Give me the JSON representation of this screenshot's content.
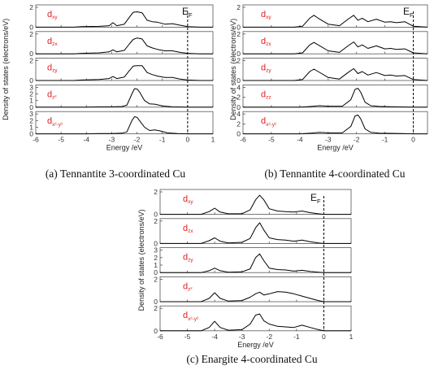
{
  "chart_data": [
    {
      "type": "line",
      "caption": "(a) Tennantite 3-coordinated Cu",
      "xlabel": "Energy /eV",
      "ylabel": "Density of states (electrons/eV)",
      "fermi_label": "E",
      "fermi_sub": "F",
      "xlim": [
        -6,
        1
      ],
      "xticks": [
        "-6",
        "-5",
        "-4",
        "-3",
        "-2",
        "-1",
        "0",
        "1"
      ],
      "panels": [
        {
          "orbital": "d",
          "orbital_sub": "xy",
          "ylim": [
            0,
            2
          ],
          "yticks": [
            "0",
            "2"
          ],
          "x": [
            -6,
            -4.5,
            -4.2,
            -3.5,
            -3.1,
            -2.95,
            -2.8,
            -2.5,
            -2.3,
            -2.15,
            -2.0,
            -1.8,
            -1.6,
            -1.4,
            -1.2,
            -0.9,
            -0.6,
            -0.3,
            0,
            0.5,
            1
          ],
          "y": [
            0,
            0,
            0.05,
            0.08,
            0.15,
            0.45,
            0.15,
            0.3,
            1.0,
            1.5,
            1.55,
            1.45,
            0.7,
            0.55,
            0.5,
            0.3,
            0.35,
            0.2,
            0.05,
            0,
            0
          ]
        },
        {
          "orbital": "d",
          "orbital_sub": "zx",
          "ylim": [
            0,
            2
          ],
          "yticks": [
            "0",
            "2"
          ],
          "x": [
            -6,
            -4.5,
            -4.2,
            -3.5,
            -3.1,
            -2.95,
            -2.8,
            -2.5,
            -2.3,
            -2.15,
            -2.0,
            -1.8,
            -1.6,
            -1.4,
            -1.2,
            -0.9,
            -0.6,
            -0.3,
            0,
            0.5,
            1
          ],
          "y": [
            0,
            0,
            0.05,
            0.1,
            0.2,
            0.4,
            0.2,
            0.35,
            1.0,
            1.45,
            1.6,
            1.5,
            0.8,
            0.6,
            0.45,
            0.3,
            0.3,
            0.15,
            0.05,
            0,
            0
          ]
        },
        {
          "orbital": "d",
          "orbital_sub": "zy",
          "ylim": [
            0,
            2
          ],
          "yticks": [
            "0",
            "2"
          ],
          "x": [
            -6,
            -4.5,
            -4.2,
            -3.5,
            -3.1,
            -2.95,
            -2.8,
            -2.5,
            -2.3,
            -2.15,
            -2.0,
            -1.8,
            -1.6,
            -1.4,
            -1.2,
            -0.9,
            -0.6,
            -0.3,
            0,
            0.5,
            1
          ],
          "y": [
            0,
            0,
            0.05,
            0.1,
            0.2,
            0.4,
            0.2,
            0.35,
            1.0,
            1.45,
            1.5,
            1.5,
            0.8,
            0.6,
            0.45,
            0.3,
            0.3,
            0.15,
            0.05,
            0,
            0
          ]
        },
        {
          "orbital": "d",
          "orbital_sub": "z²",
          "ylim": [
            0,
            3
          ],
          "yticks": [
            "0",
            "1",
            "2",
            "3"
          ],
          "x": [
            -6,
            -4,
            -3.5,
            -3,
            -2.6,
            -2.4,
            -2.2,
            -2.1,
            -2.0,
            -1.9,
            -1.7,
            -1.5,
            -1.3,
            -1.0,
            -0.6,
            0,
            1
          ],
          "y": [
            0,
            0,
            0.05,
            0.05,
            0.1,
            0.3,
            2.0,
            2.8,
            2.75,
            2.3,
            1.0,
            0.5,
            0.45,
            0.2,
            0.05,
            0,
            0
          ]
        },
        {
          "orbital": "d",
          "orbital_sub": "x²-y²",
          "ylim": [
            0,
            3
          ],
          "yticks": [
            "0",
            "1",
            "2",
            "3"
          ],
          "x": [
            -6,
            -4,
            -3.5,
            -3,
            -2.6,
            -2.4,
            -2.2,
            -2.1,
            -2.0,
            -1.9,
            -1.7,
            -1.5,
            -1.3,
            -1.1,
            -0.8,
            -0.4,
            0,
            1
          ],
          "y": [
            0,
            0,
            0.05,
            0.05,
            0.1,
            0.3,
            2.0,
            2.6,
            2.5,
            2.0,
            1.0,
            0.5,
            0.6,
            0.45,
            0.15,
            0.05,
            0,
            0
          ]
        }
      ]
    },
    {
      "type": "line",
      "caption": "(b) Tennantite 4-coordinated Cu",
      "xlabel": "Energy /eV",
      "ylabel": "Density of states (electrons/eV)",
      "fermi_label": "E",
      "fermi_sub": "F",
      "xlim": [
        -6,
        0.5
      ],
      "xticks": [
        "-6",
        "-5",
        "-4",
        "-3",
        "-2",
        "-1",
        "0"
      ],
      "panels": [
        {
          "orbital": "d",
          "orbital_sub": "xy",
          "ylim": [
            0,
            2
          ],
          "yticks": [
            "0",
            "2"
          ],
          "x": [
            -6,
            -4.2,
            -3.9,
            -3.65,
            -3.5,
            -3.35,
            -3.0,
            -2.6,
            -2.3,
            -2.1,
            -1.95,
            -1.8,
            -1.6,
            -1.3,
            -1.0,
            -0.8,
            -0.6,
            -0.3,
            0,
            0.5
          ],
          "y": [
            0,
            0,
            0.1,
            0.9,
            1.2,
            0.9,
            0.3,
            0.15,
            0.8,
            1.2,
            0.7,
            0.9,
            0.55,
            0.8,
            0.5,
            0.55,
            0.45,
            0.55,
            0.1,
            0
          ]
        },
        {
          "orbital": "d",
          "orbital_sub": "zx",
          "ylim": [
            0,
            2
          ],
          "yticks": [
            "0",
            "2"
          ],
          "x": [
            -6,
            -4.2,
            -3.9,
            -3.65,
            -3.5,
            -3.35,
            -3.0,
            -2.6,
            -2.3,
            -2.1,
            -1.95,
            -1.8,
            -1.6,
            -1.3,
            -1.0,
            -0.8,
            -0.6,
            -0.3,
            0,
            0.5
          ],
          "y": [
            0,
            0,
            0.1,
            0.9,
            1.15,
            0.9,
            0.3,
            0.15,
            0.8,
            1.2,
            0.7,
            0.9,
            0.55,
            0.8,
            0.5,
            0.55,
            0.45,
            0.5,
            0.1,
            0
          ]
        },
        {
          "orbital": "d",
          "orbital_sub": "zy",
          "ylim": [
            0,
            2
          ],
          "yticks": [
            "0",
            "2"
          ],
          "x": [
            -6,
            -4.2,
            -3.9,
            -3.65,
            -3.5,
            -3.35,
            -3.0,
            -2.6,
            -2.3,
            -2.1,
            -1.95,
            -1.8,
            -1.6,
            -1.3,
            -1.0,
            -0.8,
            -0.6,
            -0.3,
            0,
            0.5
          ],
          "y": [
            0,
            0,
            0.1,
            0.9,
            1.15,
            0.9,
            0.3,
            0.15,
            0.8,
            1.2,
            0.7,
            0.9,
            0.55,
            0.8,
            0.5,
            0.55,
            0.45,
            0.5,
            0.1,
            0
          ]
        },
        {
          "orbital": "d",
          "orbital_sub": "zz",
          "ylim": [
            0,
            4
          ],
          "yticks": [
            "0",
            "2",
            "4"
          ],
          "x": [
            -6,
            -4.0,
            -3.6,
            -3.3,
            -3.0,
            -2.5,
            -2.2,
            -2.05,
            -1.95,
            -1.85,
            -1.7,
            -1.5,
            -1.2,
            -0.8,
            -0.4,
            0,
            0.5
          ],
          "y": [
            0,
            0,
            0.15,
            0.3,
            0.2,
            0.2,
            1.5,
            3.6,
            3.8,
            3.0,
            1.0,
            0.3,
            0.15,
            0.1,
            0.05,
            0,
            0
          ]
        },
        {
          "orbital": "d",
          "orbital_sub": "x²-y²",
          "ylim": [
            0,
            4
          ],
          "yticks": [
            "0",
            "2",
            "4"
          ],
          "x": [
            -6,
            -4.0,
            -3.6,
            -3.3,
            -3.0,
            -2.5,
            -2.2,
            -2.05,
            -1.95,
            -1.85,
            -1.7,
            -1.5,
            -1.2,
            -0.8,
            -0.4,
            0,
            0.5
          ],
          "y": [
            0,
            0,
            0.15,
            0.3,
            0.2,
            0.2,
            1.5,
            3.6,
            3.8,
            3.0,
            1.0,
            0.3,
            0.15,
            0.1,
            0.05,
            0,
            0
          ]
        }
      ]
    },
    {
      "type": "line",
      "caption": "(c) Enargite 4-coordinated Cu",
      "xlabel": "Energy /eV",
      "ylabel": "Density of states (electrons/eV)",
      "fermi_label": "E",
      "fermi_sub": "F",
      "xlim": [
        -6,
        1
      ],
      "xticks": [
        "-6",
        "-5",
        "-4",
        "-3",
        "-2",
        "-1",
        "0",
        "1"
      ],
      "panels": [
        {
          "orbital": "d",
          "orbital_sub": "xy",
          "ylim": [
            0,
            2
          ],
          "yticks": [
            "0",
            "2"
          ],
          "x": [
            -6,
            -4.5,
            -4.2,
            -4.0,
            -3.8,
            -3.5,
            -3.0,
            -2.7,
            -2.5,
            -2.35,
            -2.2,
            -2.0,
            -1.7,
            -1.4,
            -1.1,
            -0.8,
            -0.5,
            -0.2,
            0,
            1
          ],
          "y": [
            0,
            0,
            0.25,
            0.55,
            0.2,
            0.05,
            0.05,
            0.4,
            1.3,
            1.7,
            1.3,
            0.5,
            0.3,
            0.25,
            0.2,
            0.3,
            0.15,
            0.05,
            0,
            0
          ]
        },
        {
          "orbital": "d",
          "orbital_sub": "zx",
          "ylim": [
            0,
            2
          ],
          "yticks": [
            "0",
            "2"
          ],
          "x": [
            -6,
            -4.5,
            -4.2,
            -4.0,
            -3.8,
            -3.5,
            -3.0,
            -2.7,
            -2.5,
            -2.35,
            -2.2,
            -2.0,
            -1.7,
            -1.4,
            -1.1,
            -0.8,
            -0.5,
            -0.2,
            0,
            1
          ],
          "y": [
            0,
            0,
            0.25,
            0.5,
            0.2,
            0.05,
            0.1,
            0.45,
            1.4,
            1.85,
            1.2,
            0.5,
            0.35,
            0.3,
            0.2,
            0.3,
            0.15,
            0.05,
            0,
            0
          ]
        },
        {
          "orbital": "d",
          "orbital_sub": "zy",
          "ylim": [
            0,
            3
          ],
          "yticks": [
            "0",
            "1",
            "2",
            "3"
          ],
          "x": [
            -6,
            -4.5,
            -4.2,
            -4.0,
            -3.8,
            -3.5,
            -3.0,
            -2.7,
            -2.5,
            -2.35,
            -2.2,
            -2.0,
            -1.7,
            -1.4,
            -1.1,
            -0.8,
            -0.5,
            -0.2,
            0,
            1
          ],
          "y": [
            0,
            0,
            0.25,
            0.6,
            0.25,
            0.05,
            0.1,
            0.5,
            2.0,
            2.5,
            1.6,
            0.6,
            0.4,
            0.35,
            0.2,
            0.3,
            0.15,
            0.05,
            0,
            0
          ]
        },
        {
          "orbital": "d",
          "orbital_sub": "z²",
          "ylim": [
            0,
            2
          ],
          "yticks": [
            "0",
            "2"
          ],
          "x": [
            -6,
            -4.5,
            -4.2,
            -4.0,
            -3.8,
            -3.5,
            -3.0,
            -2.7,
            -2.5,
            -2.35,
            -2.2,
            -2.0,
            -1.7,
            -1.4,
            -1.1,
            -0.8,
            -0.5,
            -0.2,
            0,
            1
          ],
          "y": [
            0,
            0,
            0.3,
            0.8,
            0.3,
            0.05,
            0.1,
            0.4,
            0.7,
            0.85,
            0.6,
            0.7,
            0.9,
            0.85,
            0.7,
            0.5,
            0.3,
            0.1,
            0,
            0
          ]
        },
        {
          "orbital": "d",
          "orbital_sub": "x²-y²",
          "ylim": [
            0,
            2
          ],
          "yticks": [
            "0",
            "2"
          ],
          "x": [
            -6,
            -4.5,
            -4.2,
            -4.0,
            -3.8,
            -3.5,
            -3.0,
            -2.7,
            -2.5,
            -2.35,
            -2.2,
            -2.0,
            -1.7,
            -1.4,
            -1.1,
            -0.8,
            -0.5,
            -0.2,
            0,
            1
          ],
          "y": [
            0,
            0,
            0.3,
            0.85,
            0.3,
            0.05,
            0.1,
            0.6,
            1.4,
            1.5,
            0.9,
            0.6,
            0.4,
            0.35,
            0.3,
            0.5,
            0.3,
            0.1,
            0,
            0
          ]
        }
      ]
    }
  ],
  "colors": {
    "orbital_label": "#e02020",
    "curve": "#000000",
    "fermi_line": "#000000"
  }
}
